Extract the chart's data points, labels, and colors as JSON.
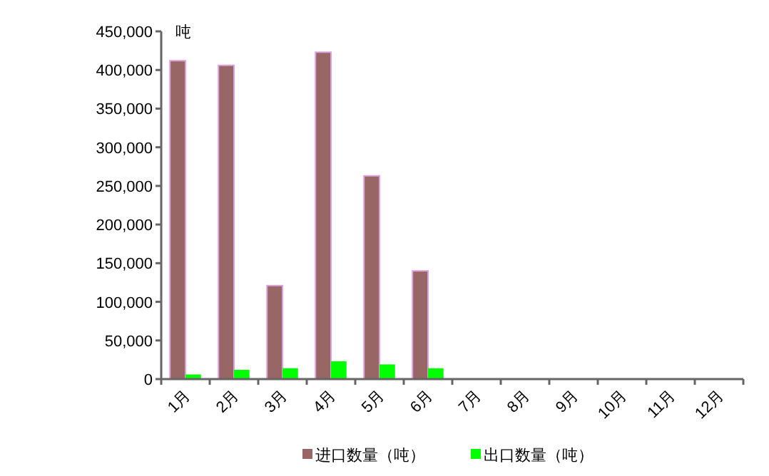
{
  "chart_data": {
    "type": "bar",
    "ylabel": "吨",
    "categories": [
      "1月",
      "2月",
      "3月",
      "4月",
      "5月",
      "6月",
      "7月",
      "8月",
      "9月",
      "10月",
      "11月",
      "12月"
    ],
    "series": [
      {
        "name": "进口数量（吨）",
        "color": "#996666",
        "values": [
          412000,
          406000,
          121000,
          423000,
          263000,
          140000,
          null,
          null,
          null,
          null,
          null,
          null
        ]
      },
      {
        "name": "出口数量（吨）",
        "color": "#00ff00",
        "values": [
          6000,
          12000,
          14000,
          23000,
          19000,
          14000,
          null,
          null,
          null,
          null,
          null,
          null
        ]
      }
    ],
    "ylim": [
      0,
      450000
    ],
    "yticks": [
      0,
      {
        "value": 50000,
        "label": "50,000"
      },
      {
        "value": 100000,
        "label": "100,000"
      },
      {
        "value": 150000,
        "label": "150,000"
      },
      {
        "value": 200000,
        "label": "200,000"
      },
      {
        "value": 250000,
        "label": "250,000"
      },
      {
        "value": 300000,
        "label": "300,000"
      },
      {
        "value": 350000,
        "label": "350,000"
      },
      {
        "value": 400000,
        "label": "400,000"
      },
      {
        "value": 450000,
        "label": "450,000"
      }
    ],
    "grid": false,
    "legend": "bottom"
  }
}
